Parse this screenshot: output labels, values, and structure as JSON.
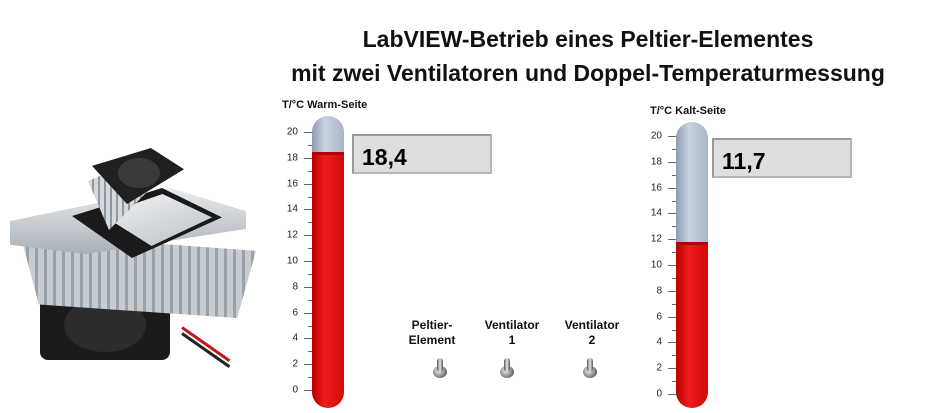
{
  "title": {
    "line1": "LabVIEW-Betrieb eines Peltier-Elementes",
    "line2": "mit zwei Ventilatoren und Doppel-Temperaturmessung"
  },
  "scale_ticks": [
    "20",
    "18",
    "16",
    "14",
    "12",
    "10",
    "8",
    "6",
    "4",
    "2",
    "0"
  ],
  "scale_range": [
    0,
    20
  ],
  "warm": {
    "label": "T/°C Warm-Seite",
    "value": 18.4,
    "display": "18,4"
  },
  "cold": {
    "label": "T/°C Kalt-Seite",
    "value": 11.7,
    "display": "11,7"
  },
  "switches": [
    {
      "line1": "Peltier-",
      "line2": "Element",
      "state": "off"
    },
    {
      "line1": "Ventilator",
      "line2": "1",
      "state": "off"
    },
    {
      "line1": "Ventilator",
      "line2": "2",
      "state": "off"
    }
  ],
  "colors": {
    "mercury": "#e01414",
    "tube_empty": "#b4bfd0",
    "readout_bg": "#dedede"
  },
  "photo": {
    "subject": "peltier-cooler-with-fans"
  }
}
